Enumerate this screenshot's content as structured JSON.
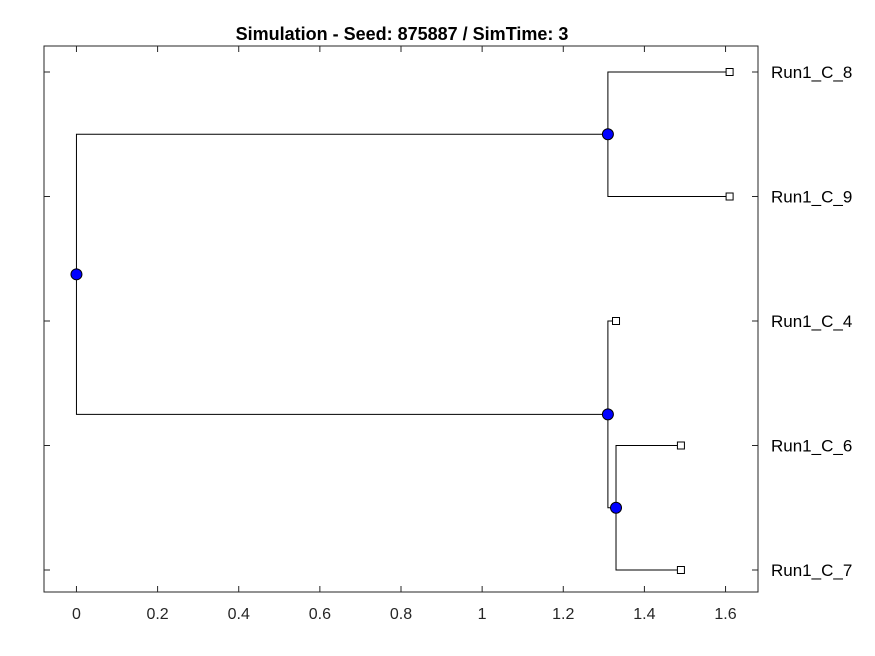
{
  "title": "Simulation - Seed: 875887 / SimTime: 3",
  "colors": {
    "node_fill": "#0000ff",
    "leaf_fill": "#ffffff",
    "line": "#000000",
    "axis": "#262626"
  },
  "x_axis": {
    "range": [
      -0.08,
      1.68
    ],
    "ticks": [
      0,
      0.2,
      0.4,
      0.6,
      0.8,
      1,
      1.2,
      1.4,
      1.6
    ],
    "tick_labels": [
      "0",
      "0.2",
      "0.4",
      "0.6",
      "0.8",
      "1",
      "1.2",
      "1.4",
      "1.6"
    ]
  },
  "leaves": [
    {
      "label": "Run1_C_8",
      "x": 1.61
    },
    {
      "label": "Run1_C_9",
      "x": 1.61
    },
    {
      "label": "Run1_C_4",
      "x": 1.33
    },
    {
      "label": "Run1_C_6",
      "x": 1.49
    },
    {
      "label": "Run1_C_7",
      "x": 1.49
    }
  ],
  "internal_nodes": [
    {
      "id": "root",
      "x": 0,
      "children": [
        "n89",
        "n467"
      ]
    },
    {
      "id": "n89",
      "x": 1.31,
      "children": [
        "leaf0",
        "leaf1"
      ]
    },
    {
      "id": "n467",
      "x": 1.31,
      "children": [
        "leaf2",
        "n67"
      ]
    },
    {
      "id": "n67",
      "x": 1.33,
      "children": [
        "leaf3",
        "leaf4"
      ]
    }
  ]
}
